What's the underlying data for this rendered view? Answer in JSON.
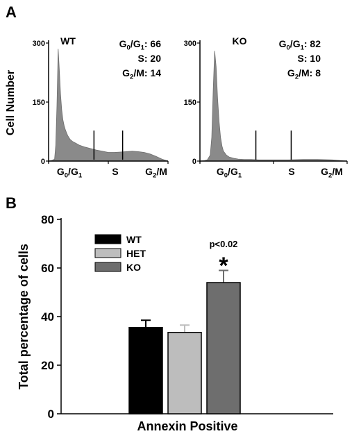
{
  "panel_a": {
    "letter": "A",
    "ylabel": "Cell Number",
    "y_ticks": [
      "0",
      "150",
      "300"
    ],
    "phase_labels": [
      "G0/G1",
      "S",
      "G2/M"
    ],
    "histograms": [
      {
        "name": "WT",
        "stats": [
          [
            "G0/G1",
            "66"
          ],
          [
            "S",
            "20"
          ],
          [
            "G2/M",
            "14"
          ]
        ]
      },
      {
        "name": "KO",
        "stats": [
          [
            "G0/G1",
            "82"
          ],
          [
            "S",
            "10"
          ],
          [
            "G2/M",
            "8"
          ]
        ]
      }
    ]
  },
  "panel_b": {
    "letter": "B",
    "annotation": "p<0.02",
    "star": "*"
  },
  "chart_data": [
    {
      "type": "area",
      "title": "WT",
      "ylabel": "Cell Number",
      "ylim": [
        0,
        300
      ],
      "y_ticks": [
        0,
        150,
        300
      ],
      "x_tick_labels": [
        "G0/G1",
        "S",
        "G2/M"
      ],
      "x": [
        0,
        3,
        5,
        6,
        7,
        8,
        9,
        10,
        11,
        12,
        13,
        14,
        15,
        16,
        17,
        18,
        20,
        23,
        26,
        30,
        35,
        40,
        45,
        50,
        55,
        60,
        65,
        70,
        75,
        80,
        85,
        90,
        95,
        100
      ],
      "y": [
        0,
        2,
        5,
        40,
        140,
        285,
        230,
        170,
        130,
        105,
        90,
        80,
        72,
        65,
        60,
        55,
        50,
        45,
        40,
        36,
        32,
        28,
        25,
        22,
        22,
        23,
        24,
        25,
        24,
        22,
        18,
        12,
        5,
        0
      ],
      "gates": [
        38,
        62
      ],
      "stats": {
        "G0/G1": 66,
        "S": 20,
        "G2/M": 14
      }
    },
    {
      "type": "area",
      "title": "KO",
      "ylabel": "Cell Number",
      "ylim": [
        0,
        300
      ],
      "y_ticks": [
        0,
        150,
        300
      ],
      "x_tick_labels": [
        "G0/G1",
        "S",
        "G2/M"
      ],
      "x": [
        0,
        3,
        5,
        7,
        8,
        9,
        10,
        11,
        12,
        13,
        14,
        15,
        16,
        18,
        20,
        23,
        26,
        30,
        35,
        40,
        50,
        60,
        70,
        80,
        90,
        100
      ],
      "y": [
        0,
        1,
        3,
        15,
        60,
        180,
        280,
        240,
        160,
        100,
        60,
        38,
        25,
        15,
        10,
        7,
        5,
        4,
        4,
        3,
        3,
        3,
        4,
        4,
        3,
        0
      ],
      "gates": [
        38,
        62
      ],
      "stats": {
        "G0/G1": 82,
        "S": 10,
        "G2/M": 8
      }
    },
    {
      "type": "bar",
      "categories": [
        "Annexin Positive"
      ],
      "series": [
        {
          "name": "WT",
          "values": [
            35.5
          ],
          "error": [
            3
          ],
          "color": "#000000"
        },
        {
          "name": "HET",
          "values": [
            33.5
          ],
          "error": [
            3
          ],
          "color": "#bdbdbd"
        },
        {
          "name": "KO",
          "values": [
            54
          ],
          "error": [
            5
          ],
          "color": "#6e6e6e"
        }
      ],
      "xlabel": "Annexin Positive",
      "ylabel": "Total percentage of cells",
      "ylim": [
        0,
        80
      ],
      "y_ticks": [
        0,
        20,
        40,
        60,
        80
      ],
      "legend": "top-left",
      "annotation": "p<0.02",
      "significance": "*"
    }
  ]
}
